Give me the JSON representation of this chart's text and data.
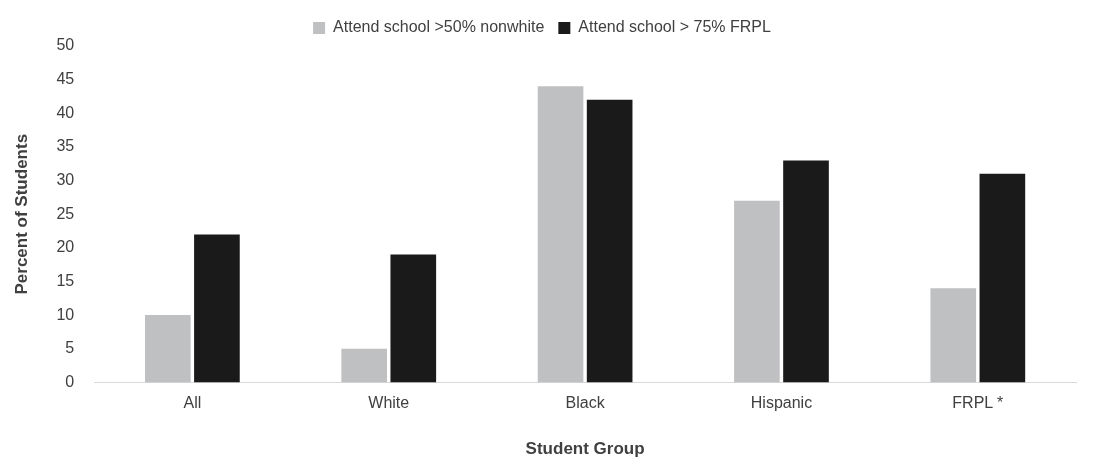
{
  "chart_data": {
    "type": "bar",
    "xlabel": "Student Group",
    "ylabel": "Percent of Students",
    "categories": [
      "All",
      "White",
      "Black",
      "Hispanic",
      "FRPL *"
    ],
    "series": [
      {
        "name": "Attend school >50% nonwhite",
        "color": "#bfc0c2",
        "values": [
          10,
          5,
          44,
          27,
          14
        ]
      },
      {
        "name": "Attend school > 75% FRPL",
        "color": "#1a1a1a",
        "values": [
          22,
          19,
          42,
          33,
          31
        ]
      }
    ],
    "ylim": [
      0,
      50
    ],
    "yticks": [
      0,
      5,
      10,
      15,
      20,
      25,
      30,
      35,
      40,
      45,
      50
    ],
    "grid": false,
    "legend": "top"
  }
}
